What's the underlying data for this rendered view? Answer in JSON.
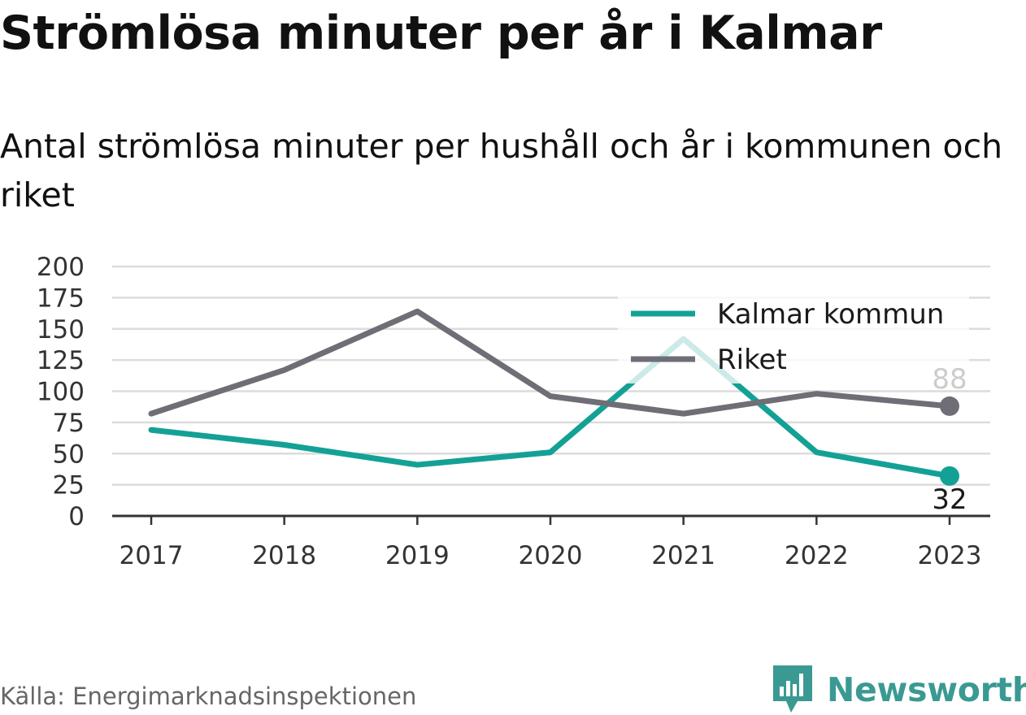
{
  "title": "Strömlösa minuter per år i Kalmar",
  "subtitle": "Antal strömlösa minuter per hushåll och år i kommunen och riket",
  "source": "Källa: Energimarknadsinspektionen",
  "brand": {
    "name": "Newsworthy",
    "icon": "newsworthy-logo-icon",
    "color": "#3a9a93"
  },
  "chart_data": {
    "type": "line",
    "categories": [
      "2017",
      "2018",
      "2019",
      "2020",
      "2021",
      "2022",
      "2023"
    ],
    "ylim": [
      0,
      200
    ],
    "yticks": [
      "0",
      "25",
      "50",
      "75",
      "100",
      "125",
      "150",
      "175",
      "200"
    ],
    "grid": true,
    "legend": "top-right",
    "series": [
      {
        "name": "Kalmar kommun",
        "color": "#14a195",
        "values": [
          69,
          57,
          41,
          51,
          142,
          51,
          32
        ],
        "end_label": "32"
      },
      {
        "name": "Riket",
        "color": "#6f6e76",
        "values": [
          82,
          117,
          164,
          96,
          82,
          98,
          88
        ],
        "end_label": "88"
      }
    ]
  }
}
